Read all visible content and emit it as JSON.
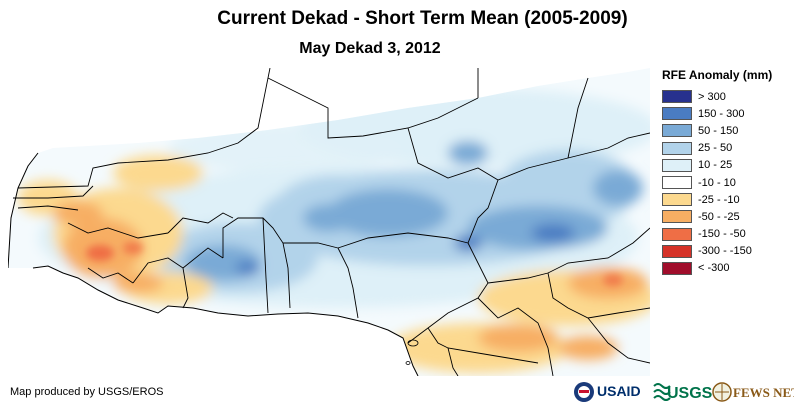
{
  "title": "Current Dekad - Short Term Mean (2005-2009)",
  "subtitle": "May Dekad 3, 2012",
  "legend": {
    "title": "RFE Anomaly (mm)",
    "items": [
      {
        "label": "> 300",
        "color": "#27318e"
      },
      {
        "label": "150 - 300",
        "color": "#4a7cc2"
      },
      {
        "label": "50 - 150",
        "color": "#7aaad6"
      },
      {
        "label": "25 - 50",
        "color": "#b2d3ea"
      },
      {
        "label": "10 - 25",
        "color": "#def0f8"
      },
      {
        "label": "-10 - 10",
        "color": "#ffffff"
      },
      {
        "label": "-25 - -10",
        "color": "#fcd98f"
      },
      {
        "label": "-50 - -25",
        "color": "#f7ae63"
      },
      {
        "label": "-150 - -50",
        "color": "#ef6e45"
      },
      {
        "label": "-300 - -150",
        "color": "#d53228"
      },
      {
        "label": "< -300",
        "color": "#a00d2b"
      }
    ]
  },
  "credit": "Map produced by USGS/EROS",
  "logos": {
    "usaid": "USAID",
    "usgs": "USGS",
    "fewsnet": "FEWS NET"
  }
}
